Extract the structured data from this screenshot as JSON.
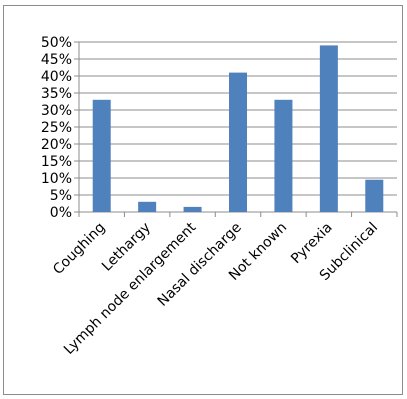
{
  "chart_data": {
    "type": "bar",
    "categories": [
      "Coughing",
      "Lethargy",
      "Lymph node enlargement",
      "Nasal discharge",
      "Not known",
      "Pyrexia",
      "Subclinical"
    ],
    "values": [
      0.33,
      0.03,
      0.015,
      0.41,
      0.33,
      0.49,
      0.095
    ],
    "yticks": [
      "0%",
      "5%",
      "10%",
      "15%",
      "20%",
      "25%",
      "30%",
      "35%",
      "40%",
      "45%",
      "50%"
    ],
    "ylim": [
      0,
      0.5
    ],
    "grid": true,
    "legend": "none",
    "bar_color": "#4f81bd",
    "title": "",
    "xlabel": "",
    "ylabel": ""
  }
}
